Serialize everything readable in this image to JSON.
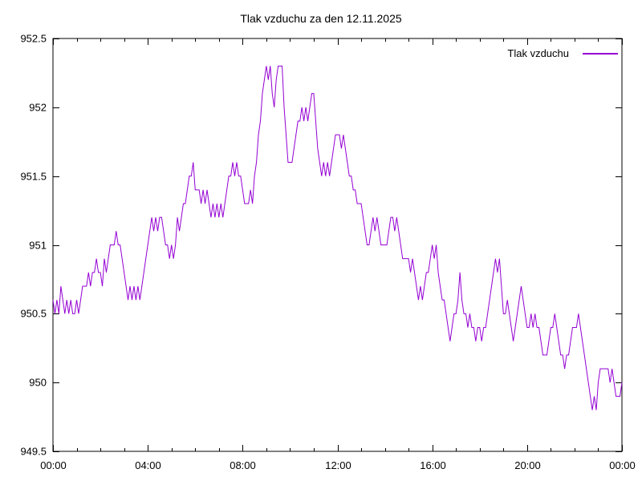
{
  "window": {
    "background_color": "#ffffff",
    "text_color": "#000000"
  },
  "chart_data": {
    "type": "line",
    "title": "Tlak vzduchu za den 12.11.2025",
    "xlabel": "",
    "ylabel": "",
    "grid": false,
    "ylim": [
      949.5,
      952.5
    ],
    "y_ticks": [
      949.5,
      950,
      950.5,
      951,
      951.5,
      952,
      952.5
    ],
    "y_tick_labels": [
      "949.5",
      "950",
      "950.5",
      "951",
      "951.5",
      "952",
      "952.5"
    ],
    "xlim_minutes": [
      0,
      1440
    ],
    "x_ticks_minutes": [
      0,
      240,
      480,
      720,
      960,
      1200,
      1440
    ],
    "x_tick_labels": [
      "00:00",
      "04:00",
      "08:00",
      "12:00",
      "16:00",
      "20:00",
      "00:00"
    ],
    "x_minor_tick_interval_minutes": 60,
    "legend": {
      "position": "top-right",
      "entries": [
        {
          "label": "Tlak vzduchu",
          "color": "#9400d3"
        }
      ]
    },
    "series": [
      {
        "name": "Tlak vzduchu",
        "color": "#9400d3",
        "start_time": "00:00",
        "interval_minutes": 5,
        "values": [
          950.6,
          950.5,
          950.6,
          950.5,
          950.7,
          950.6,
          950.5,
          950.6,
          950.5,
          950.6,
          950.5,
          950.5,
          950.6,
          950.5,
          950.6,
          950.7,
          950.7,
          950.7,
          950.8,
          950.7,
          950.8,
          950.8,
          950.9,
          950.8,
          950.8,
          950.7,
          950.9,
          950.8,
          950.9,
          951.0,
          951.0,
          951.0,
          951.1,
          951.0,
          951.0,
          950.9,
          950.8,
          950.7,
          950.6,
          950.7,
          950.6,
          950.7,
          950.6,
          950.7,
          950.6,
          950.7,
          950.8,
          950.9,
          951.0,
          951.1,
          951.2,
          951.1,
          951.2,
          951.1,
          951.2,
          951.2,
          951.1,
          951.0,
          951.0,
          950.9,
          951.0,
          950.9,
          951.0,
          951.2,
          951.1,
          951.2,
          951.3,
          951.3,
          951.4,
          951.5,
          951.5,
          951.6,
          951.4,
          951.4,
          951.4,
          951.3,
          951.4,
          951.3,
          951.4,
          951.3,
          951.2,
          951.3,
          951.2,
          951.3,
          951.2,
          951.3,
          951.2,
          951.3,
          951.4,
          951.5,
          951.5,
          951.6,
          951.5,
          951.6,
          951.5,
          951.5,
          951.4,
          951.3,
          951.3,
          951.3,
          951.4,
          951.3,
          951.5,
          951.6,
          951.8,
          951.9,
          952.1,
          952.2,
          952.3,
          952.2,
          952.3,
          952.1,
          952.0,
          952.2,
          952.3,
          952.3,
          952.3,
          952.0,
          951.8,
          951.6,
          951.6,
          951.6,
          951.7,
          951.8,
          951.9,
          951.9,
          952.0,
          951.9,
          952.0,
          951.9,
          952.0,
          952.1,
          952.1,
          951.9,
          951.7,
          951.6,
          951.5,
          951.6,
          951.5,
          951.6,
          951.5,
          951.6,
          951.7,
          951.8,
          951.8,
          951.8,
          951.7,
          951.8,
          951.7,
          951.6,
          951.5,
          951.5,
          951.4,
          951.4,
          951.3,
          951.3,
          951.3,
          951.2,
          951.1,
          951.0,
          951.0,
          951.1,
          951.2,
          951.1,
          951.2,
          951.1,
          951.0,
          951.0,
          951.0,
          951.0,
          951.1,
          951.2,
          951.2,
          951.1,
          951.2,
          951.1,
          951.0,
          950.9,
          950.9,
          950.9,
          950.9,
          950.8,
          950.9,
          950.8,
          950.7,
          950.6,
          950.7,
          950.6,
          950.7,
          950.8,
          950.8,
          950.9,
          951.0,
          950.9,
          951.0,
          950.8,
          950.7,
          950.6,
          950.6,
          950.5,
          950.4,
          950.3,
          950.4,
          950.5,
          950.5,
          950.6,
          950.8,
          950.6,
          950.5,
          950.5,
          950.4,
          950.5,
          950.4,
          950.4,
          950.3,
          950.4,
          950.4,
          950.3,
          950.4,
          950.4,
          950.5,
          950.6,
          950.7,
          950.8,
          950.9,
          950.8,
          950.9,
          950.7,
          950.5,
          950.5,
          950.6,
          950.5,
          950.4,
          950.3,
          950.4,
          950.5,
          950.6,
          950.7,
          950.6,
          950.5,
          950.4,
          950.4,
          950.5,
          950.4,
          950.5,
          950.4,
          950.4,
          950.3,
          950.2,
          950.2,
          950.2,
          950.3,
          950.4,
          950.4,
          950.5,
          950.4,
          950.3,
          950.2,
          950.2,
          950.1,
          950.2,
          950.2,
          950.3,
          950.4,
          950.4,
          950.4,
          950.5,
          950.4,
          950.3,
          950.2,
          950.1,
          950.0,
          949.9,
          949.8,
          949.9,
          949.8,
          950.0,
          950.1,
          950.1,
          950.1,
          950.1,
          950.1,
          950.0,
          950.1,
          950.0,
          949.9,
          949.9,
          949.9,
          950.0
        ]
      }
    ]
  }
}
